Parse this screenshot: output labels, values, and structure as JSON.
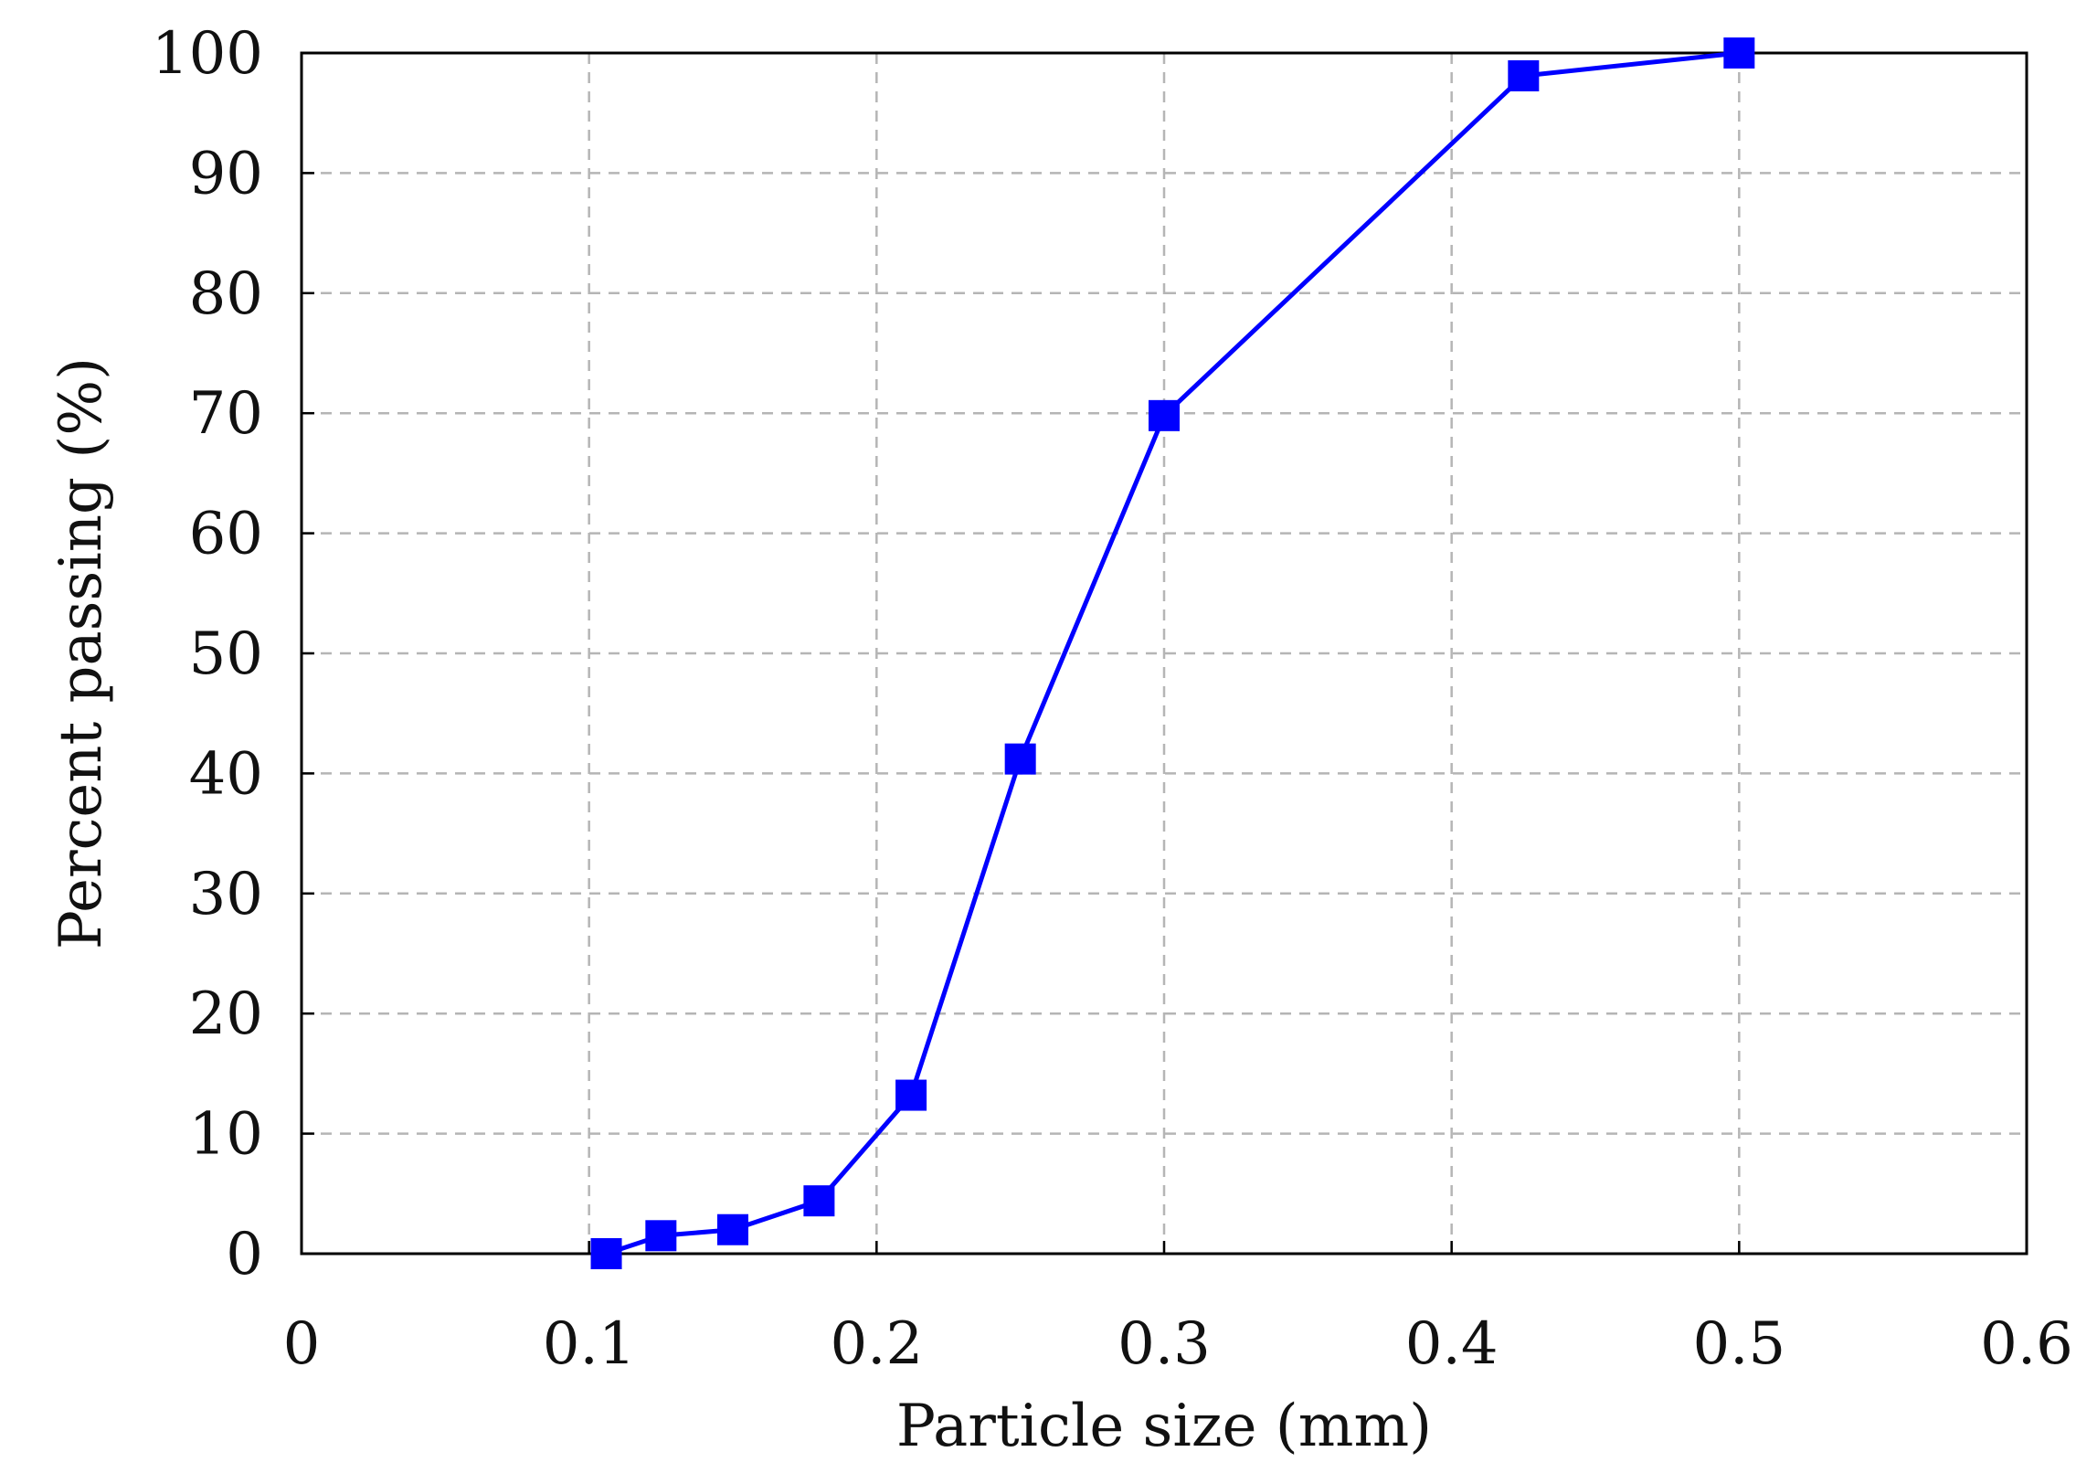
{
  "chart_data": {
    "type": "line",
    "title": "",
    "xlabel": "Particle size (mm)",
    "ylabel": "Percent passing (%)",
    "xlim": [
      0,
      0.6
    ],
    "ylim": [
      0,
      100
    ],
    "xticks": [
      0,
      0.1,
      0.2,
      0.3,
      0.4,
      0.5,
      0.6
    ],
    "yticks": [
      0,
      10,
      20,
      30,
      40,
      50,
      60,
      70,
      80,
      90,
      100
    ],
    "xtick_labels": [
      "0",
      "0.1",
      "0.2",
      "0.3",
      "0.4",
      "0.5",
      "0.6"
    ],
    "ytick_labels": [
      "0",
      "10",
      "20",
      "30",
      "40",
      "50",
      "60",
      "70",
      "80",
      "90",
      "100"
    ],
    "grid": true,
    "legend": "none",
    "series": [
      {
        "marker": "square",
        "color": "#0000ff",
        "points": [
          {
            "x": 0.106,
            "y": 0
          },
          {
            "x": 0.125,
            "y": 1.5
          },
          {
            "x": 0.15,
            "y": 2
          },
          {
            "x": 0.18,
            "y": 4.4
          },
          {
            "x": 0.212,
            "y": 13.2
          },
          {
            "x": 0.25,
            "y": 41.2
          },
          {
            "x": 0.3,
            "y": 69.8
          },
          {
            "x": 0.425,
            "y": 98.1
          },
          {
            "x": 0.5,
            "y": 100
          }
        ]
      }
    ]
  }
}
